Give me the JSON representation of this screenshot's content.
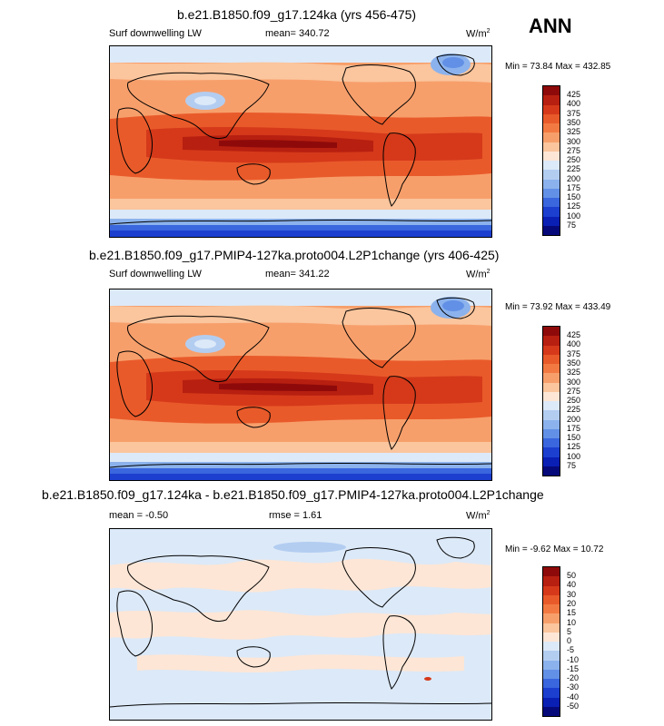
{
  "season": "ANN",
  "units_label": "W/m",
  "units_sup": "2",
  "panels": [
    {
      "title": "b.e21.B1850.f09_g17.124ka (yrs 456-475)",
      "field": "Surf downwelling LW",
      "mean": "mean= 340.72",
      "rmse": "",
      "minmax": "Min =  73.84 Max = 432.85",
      "cbar_labels": [
        "425",
        "400",
        "375",
        "350",
        "325",
        "300",
        "275",
        "250",
        "225",
        "200",
        "175",
        "150",
        "125",
        "100",
        "75"
      ]
    },
    {
      "title": "b.e21.B1850.f09_g17.PMIP4-127ka.proto004.L2P1change (yrs 406-425)",
      "field": "Surf downwelling LW",
      "mean": "mean= 341.22",
      "rmse": "",
      "minmax": "Min =  73.92 Max = 433.49",
      "cbar_labels": [
        "425",
        "400",
        "375",
        "350",
        "325",
        "300",
        "275",
        "250",
        "225",
        "200",
        "175",
        "150",
        "125",
        "100",
        "75"
      ]
    },
    {
      "title": "b.e21.B1850.f09_g17.124ka - b.e21.B1850.f09_g17.PMIP4-127ka.proto004.L2P1change",
      "field": "",
      "mean": "mean =  -0.50",
      "rmse": "rmse =   1.61",
      "minmax": "Min =  -9.62 Max =  10.72",
      "cbar_labels": [
        "50",
        "40",
        "30",
        "20",
        "15",
        "10",
        "5",
        "0",
        "-5",
        "-10",
        "-15",
        "-20",
        "-30",
        "-40",
        "-50"
      ]
    }
  ],
  "colorbar_colors": [
    "#8e0a0a",
    "#b71f10",
    "#d5391a",
    "#e95a2a",
    "#f27a42",
    "#f79f6b",
    "#fbc59d",
    "#fde6d6",
    "#dce9f8",
    "#b3cdf1",
    "#8bb2ec",
    "#6290e6",
    "#3a66de",
    "#1c3fcf",
    "#0a1fb4",
    "#06097a"
  ],
  "colors": {
    "c_425": "#8e0a0a",
    "c_400": "#b71f10",
    "c_375": "#d5391a",
    "c_350": "#e95a2a",
    "c_325": "#f27a42",
    "c_300": "#f79f6b",
    "c_275": "#fbc59d",
    "c_250": "#fde6d6",
    "c_225": "#dce9f8",
    "c_200": "#b3cdf1",
    "c_175": "#8bb2ec",
    "c_125": "#3a66de",
    "c_100": "#1c3fcf",
    "diff_pos": "#fde6d6",
    "diff_neg": "#dce9f8"
  }
}
